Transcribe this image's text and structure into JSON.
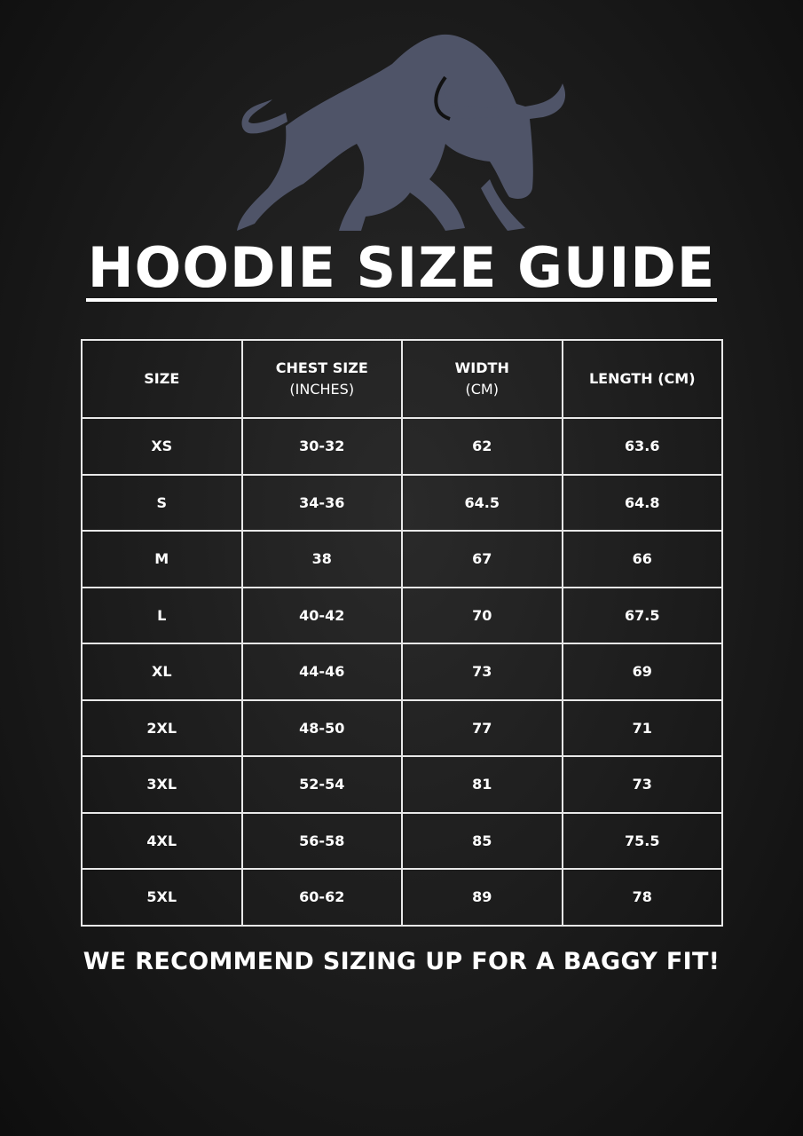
{
  "logo": {
    "icon": "charging-bull",
    "color": "#4f5468"
  },
  "title": "HOODIE SIZE GUIDE",
  "table": {
    "headers": [
      [
        "SIZE"
      ],
      [
        "CHEST SIZE",
        "(INCHES)"
      ],
      [
        "WIDTH",
        "(CM)"
      ],
      [
        "LENGTH (CM)"
      ]
    ],
    "rows": [
      [
        "XS",
        "30-32",
        "62",
        "63.6"
      ],
      [
        "S",
        "34-36",
        "64.5",
        "64.8"
      ],
      [
        "M",
        "38",
        "67",
        "66"
      ],
      [
        "L",
        "40-42",
        "70",
        "67.5"
      ],
      [
        "XL",
        "44-46",
        "73",
        "69"
      ],
      [
        "2XL",
        "48-50",
        "77",
        "71"
      ],
      [
        "3XL",
        "52-54",
        "81",
        "73"
      ],
      [
        "4XL",
        "56-58",
        "85",
        "75.5"
      ],
      [
        "5XL",
        "60-62",
        "89",
        "78"
      ]
    ]
  },
  "note": "WE RECOMMEND SIZING UP FOR A BAGGY FIT!"
}
